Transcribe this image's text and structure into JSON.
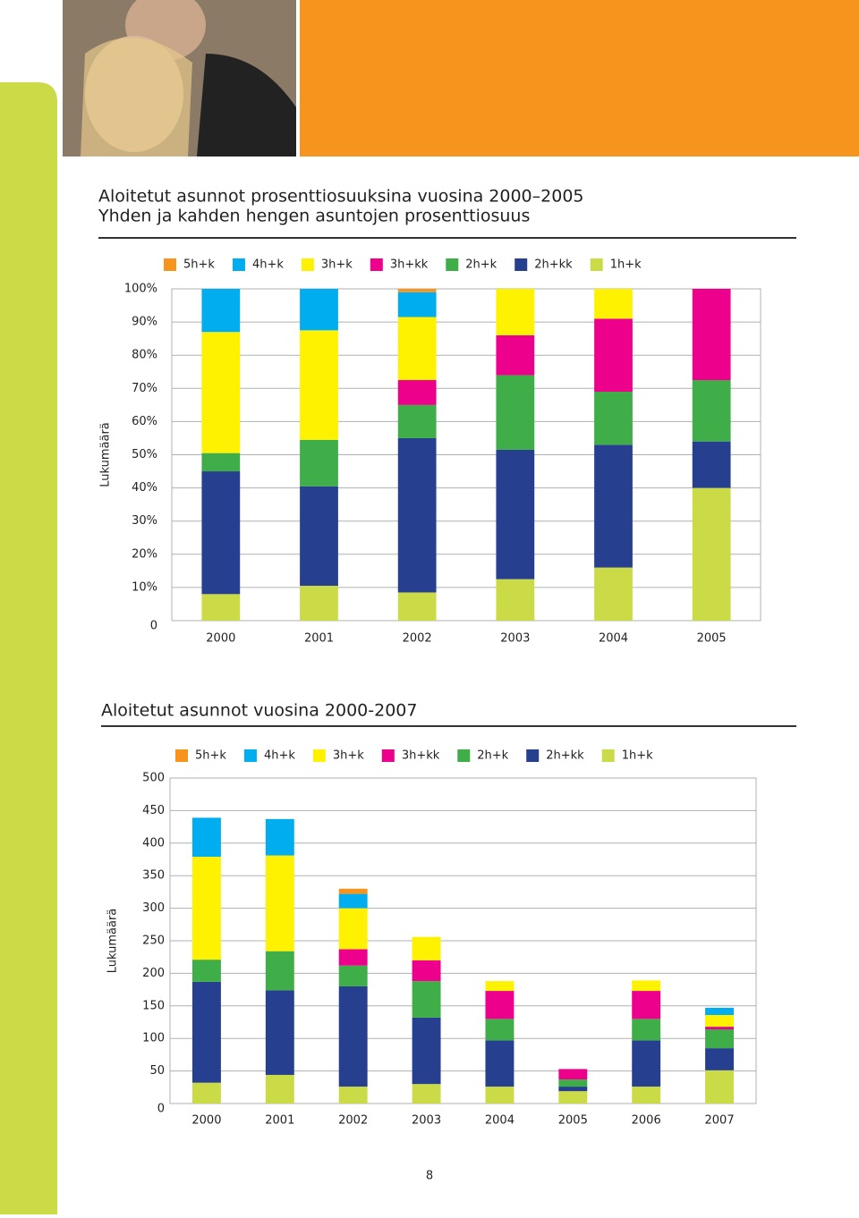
{
  "chart_data": [
    {
      "type": "stacked_bar",
      "title": "Aloitetut asunnot prosenttiosuuksina vuosina 2000–2005",
      "subtitle": "Yhden ja kahden hengen asuntojen prosenttiosuus",
      "y_label": "Lukumäärä",
      "categories": [
        "2000",
        "2001",
        "2002",
        "2003",
        "2004",
        "2005"
      ],
      "series": [
        {
          "name": "5h+k",
          "color": "#f7941d",
          "values": [
            0,
            0,
            1,
            0,
            0,
            0
          ]
        },
        {
          "name": "4h+k",
          "color": "#00aeef",
          "values": [
            13,
            12.5,
            7.5,
            0,
            0,
            0
          ]
        },
        {
          "name": "3h+k",
          "color": "#fff200",
          "values": [
            36.5,
            33,
            19,
            14,
            9,
            0
          ]
        },
        {
          "name": "3h+kk",
          "color": "#ec008c",
          "values": [
            0,
            0,
            7.5,
            12,
            22,
            27.5
          ]
        },
        {
          "name": "2h+k",
          "color": "#3fae49",
          "values": [
            5.5,
            14,
            10,
            22.5,
            16,
            18.5
          ]
        },
        {
          "name": "2h+kk",
          "color": "#263f8f",
          "values": [
            37,
            30,
            46.5,
            39,
            37,
            14
          ]
        },
        {
          "name": "1h+k",
          "color": "#cbdb47",
          "values": [
            8,
            10.5,
            8.5,
            12.5,
            16,
            40
          ]
        }
      ],
      "ylim": [
        0,
        100
      ],
      "yticks": [
        0,
        {
          "value": 10,
          "label": "10%"
        },
        {
          "value": 20,
          "label": "20%"
        },
        {
          "value": 30,
          "label": "30%"
        },
        {
          "value": 40,
          "label": "40%"
        },
        {
          "value": 50,
          "label": "50%"
        },
        {
          "value": 60,
          "label": "60%"
        },
        {
          "value": 70,
          "label": "70%"
        },
        {
          "value": 80,
          "label": "80%"
        },
        {
          "value": 90,
          "label": "90%"
        },
        {
          "value": 100,
          "label": "100%"
        }
      ],
      "grid": true
    },
    {
      "type": "stacked_bar",
      "title": "Aloitetut asunnot vuosina 2000-2007",
      "y_label": "Lukumäärä",
      "categories": [
        "2000",
        "2001",
        "2002",
        "2003",
        "2004",
        "2005",
        "2006",
        "2007"
      ],
      "series": [
        {
          "name": "5h+k",
          "color": "#f7941d",
          "values": [
            0,
            0,
            8,
            0,
            0,
            0,
            0,
            0
          ]
        },
        {
          "name": "4h+k",
          "color": "#00aeef",
          "values": [
            60,
            56,
            22,
            0,
            0,
            0,
            0,
            11
          ]
        },
        {
          "name": "3h+k",
          "color": "#fff200",
          "values": [
            158,
            147,
            63,
            36,
            15,
            0,
            16,
            18
          ]
        },
        {
          "name": "3h+kk",
          "color": "#ec008c",
          "values": [
            0,
            0,
            25,
            32,
            43,
            16,
            43,
            4
          ]
        },
        {
          "name": "2h+k",
          "color": "#3fae49",
          "values": [
            34,
            60,
            32,
            56,
            33,
            11,
            33,
            29
          ]
        },
        {
          "name": "2h+kk",
          "color": "#263f8f",
          "values": [
            155,
            130,
            154,
            102,
            71,
            7,
            71,
            34
          ]
        },
        {
          "name": "1h+k",
          "color": "#cbdb47",
          "values": [
            32,
            44,
            26,
            30,
            26,
            19,
            26,
            51
          ]
        }
      ],
      "ylim": [
        0,
        500
      ],
      "yticks": [
        0,
        50,
        100,
        150,
        200,
        250,
        300,
        350,
        400,
        450,
        500
      ],
      "grid": true
    }
  ],
  "page_number": "8"
}
